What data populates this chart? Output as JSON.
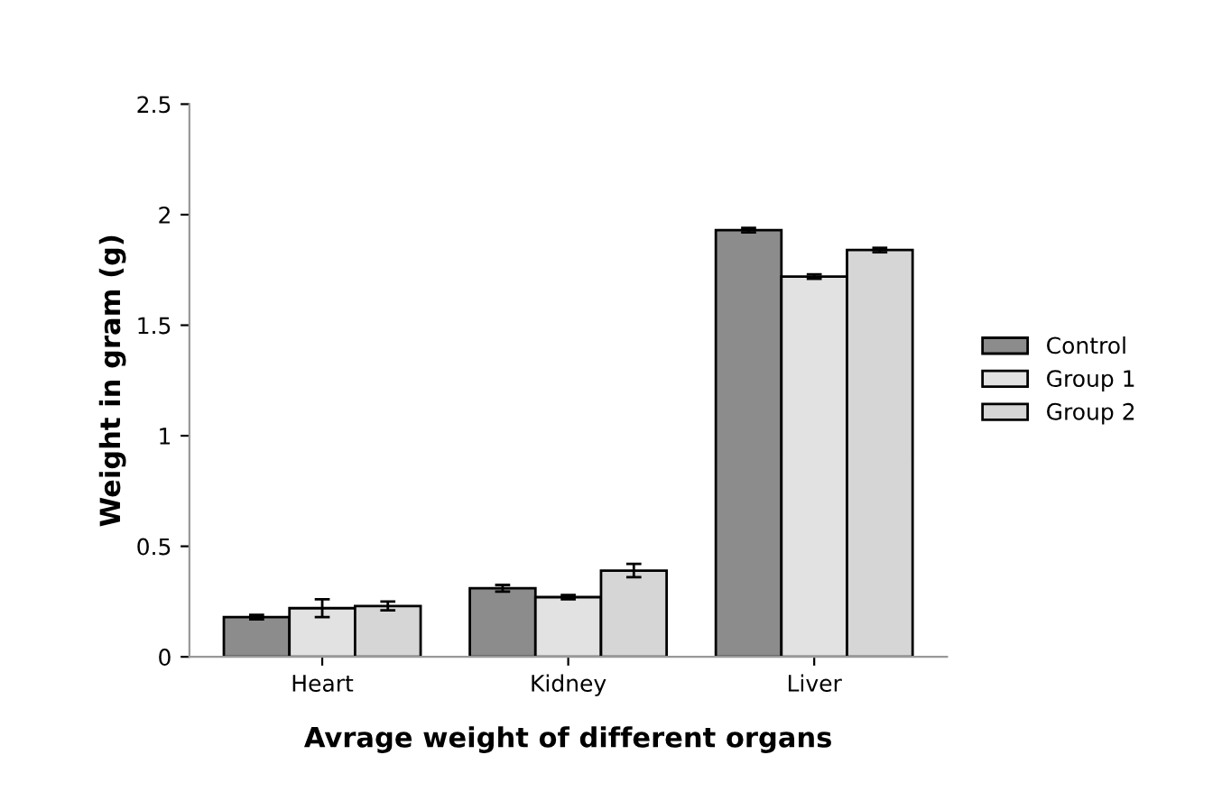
{
  "chart_data": {
    "type": "bar",
    "xlabel": "Avrage weight of different organs",
    "ylabel": "Weight in gram (g)",
    "categories": [
      "Heart",
      "Kidney",
      "Liver"
    ],
    "series": [
      {
        "name": "Control",
        "color": "#8c8c8c",
        "values": [
          0.18,
          0.31,
          1.93
        ],
        "errors": [
          0.01,
          0.015,
          0.01
        ]
      },
      {
        "name": "Group 1",
        "color": "#e2e2e2",
        "values": [
          0.22,
          0.27,
          1.72
        ],
        "errors": [
          0.04,
          0.01,
          0.01
        ]
      },
      {
        "name": "Group 2",
        "color": "#d6d6d6",
        "values": [
          0.23,
          0.39,
          1.84
        ],
        "errors": [
          0.02,
          0.03,
          0.01
        ]
      }
    ],
    "ylim": [
      0,
      2.5
    ],
    "yticks": [
      0,
      0.5,
      1,
      1.5,
      2,
      2.5
    ],
    "grid": false,
    "legend": "right"
  }
}
